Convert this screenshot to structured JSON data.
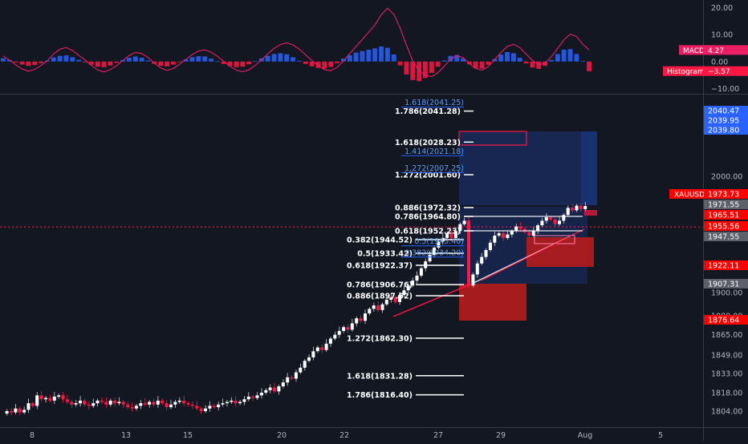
{
  "chart_data": [
    {
      "type": "bar",
      "title": "MACD",
      "indicator": {
        "name": "MACD",
        "value": "4.27",
        "color": "#e91e63"
      },
      "histogram_label": {
        "name": "Histogram",
        "value": "−3.57",
        "color": "#ff1744"
      },
      "yticks": [
        "20.00",
        "10.00",
        "0.00",
        "−10.00"
      ],
      "ylim": [
        -12,
        22
      ],
      "macd_line": [
        2.1,
        0.5,
        -1.2,
        -2.8,
        -3.6,
        -2.9,
        -1.5,
        0.3,
        2.8,
        4.6,
        5.2,
        4.1,
        2.3,
        0.6,
        -1.4,
        -3.1,
        -3.9,
        -3.0,
        -1.6,
        0.4,
        2.2,
        3.4,
        3.0,
        1.5,
        -0.6,
        -2.4,
        -3.3,
        -2.6,
        -1.0,
        0.8,
        2.6,
        3.9,
        4.3,
        3.5,
        1.9,
        0.1,
        -1.8,
        -3.2,
        -3.8,
        -3.1,
        -1.4,
        0.6,
        2.8,
        4.9,
        6.3,
        6.9,
        6.2,
        4.6,
        2.5,
        0.4,
        -1.6,
        -3.0,
        -3.4,
        -2.2,
        0.1,
        2.9,
        5.6,
        8.2,
        10.9,
        13.6,
        17.4,
        19.8,
        17.6,
        12.5,
        6.1,
        0.2,
        -3.4,
        -5.1,
        -5.6,
        -4.2,
        -1.8,
        0.9,
        2.2,
        1.4,
        -0.8,
        -2.6,
        -3.2,
        -1.9,
        0.7,
        3.4,
        5.6,
        6.4,
        5.2,
        2.8,
        0.4,
        -1.2,
        -0.6,
        1.8,
        4.9,
        8.1,
        10.2,
        9.3,
        6.4,
        4.27
      ],
      "histogram": [
        1.2,
        0.6,
        -0.4,
        -1.1,
        -1.6,
        -1.3,
        -0.6,
        0.4,
        1.5,
        2.1,
        2.3,
        1.6,
        0.6,
        -0.3,
        -1.2,
        -1.9,
        -2.1,
        -1.5,
        -0.5,
        0.6,
        1.4,
        1.9,
        1.4,
        0.4,
        -0.8,
        -1.6,
        -1.8,
        -1.1,
        -0.2,
        0.8,
        1.6,
        2.0,
        1.9,
        1.1,
        0.1,
        -0.9,
        -1.7,
        -2.1,
        -1.9,
        -1.0,
        0.2,
        1.2,
        2.1,
        2.8,
        3.1,
        2.7,
        1.6,
        0.3,
        -0.9,
        -1.8,
        -2.4,
        -2.6,
        -2.0,
        -0.6,
        1.1,
        2.4,
        3.3,
        3.9,
        4.4,
        4.9,
        5.6,
        5.1,
        2.6,
        -1.4,
        -4.8,
        -6.9,
        -7.3,
        -6.1,
        -4.2,
        -1.9,
        0.4,
        2.1,
        2.4,
        1.1,
        -1.0,
        -2.5,
        -2.6,
        -1.2,
        0.9,
        2.6,
        3.5,
        3.1,
        1.4,
        -0.7,
        -2.2,
        -2.7,
        -1.6,
        0.6,
        2.8,
        4.4,
        4.6,
        2.8,
        0.2,
        -3.57
      ]
    },
    {
      "type": "line",
      "title": "XAUUSD",
      "symbol": "XAUUSD",
      "ylim": [
        1793,
        2048
      ],
      "yticks": [
        "2000.00",
        "1900.00",
        "1880.00",
        "1865.00",
        "1849.00",
        "1833.00",
        "1818.00",
        "1804.00"
      ],
      "price_labels": [
        {
          "text": "2040.47",
          "value": 2040.47,
          "color": "#2962ff"
        },
        {
          "text": "2039.95",
          "value": 2039.95,
          "color": "#2962ff"
        },
        {
          "text": "2039.80",
          "value": 2039.8,
          "color": "#2962ff"
        },
        {
          "text": "1973.73",
          "value": 1973.73,
          "color": "#ff0000",
          "prefix": "XAUUSD"
        },
        {
          "text": "1971.55",
          "value": 1971.55,
          "color": "#5d606b"
        },
        {
          "text": "1965.51",
          "value": 1965.51,
          "color": "#ff0000"
        },
        {
          "text": "1955.56",
          "value": 1955.56,
          "color": "#ff0000"
        },
        {
          "text": "1947.55",
          "value": 1947.55,
          "color": "#5d606b"
        },
        {
          "text": "1922.11",
          "value": 1922.11,
          "color": "#ff0000"
        },
        {
          "text": "1907.31",
          "value": 1907.31,
          "color": "#5d606b"
        },
        {
          "text": "1876.64",
          "value": 1876.64,
          "color": "#ff0000"
        }
      ],
      "x_ticks": [
        "8",
        "13",
        "15",
        "20",
        "22",
        "27",
        "29",
        "Aug",
        "5"
      ],
      "fib_left": [
        {
          "text": "0.382(1944.52)",
          "value": 1944.52
        },
        {
          "text": "0.5(1933.42)",
          "value": 1933.42
        },
        {
          "text": "0.618(1922.37)",
          "value": 1922.37
        },
        {
          "text": "0.786(1906.76)",
          "value": 1906.76
        },
        {
          "text": "0.886(1897.52)",
          "value": 1897.52
        },
        {
          "text": "1.272(1862.30)",
          "value": 1862.3
        },
        {
          "text": "1.618(1831.28)",
          "value": 1831.28
        },
        {
          "text": "1.786(1816.40)",
          "value": 1816.4
        }
      ],
      "fib_mid": [
        {
          "text": "1.786(2041.28)",
          "value": 2041.28
        },
        {
          "text": "1.618(2028.23)",
          "value": 2028.23
        },
        {
          "text": "1.272(2001.60)",
          "value": 2001.6
        },
        {
          "text": "0.886(1972.32)",
          "value": 1972.32
        },
        {
          "text": "0.786(1964.80)",
          "value": 1964.8
        },
        {
          "text": "0.618(1952.23)",
          "value": 1952.23
        }
      ],
      "fib_blue": [
        {
          "text": "1.618(2041.25)",
          "value": 2041.25
        },
        {
          "text": "1.414(2021.18)",
          "value": 2021.18
        },
        {
          "text": "1.272(2007.25)",
          "value": 2007.25
        },
        {
          "text": "0.5(1943.40)",
          "value": 1943.4
        },
        {
          "text": "0.382(1934.20)",
          "value": 1934.2
        }
      ],
      "candles_close": [
        1804,
        1803,
        1806,
        1803,
        1805,
        1810,
        1808,
        1816,
        1813,
        1814,
        1812,
        1815,
        1816,
        1813,
        1811,
        1809,
        1810,
        1812,
        1809,
        1808,
        1810,
        1812,
        1811,
        1809,
        1812,
        1810,
        1811,
        1809,
        1807,
        1806,
        1808,
        1810,
        1809,
        1811,
        1809,
        1812,
        1810,
        1807,
        1809,
        1811,
        1812,
        1810,
        1809,
        1808,
        1806,
        1804,
        1806,
        1808,
        1807,
        1809,
        1810,
        1811,
        1812,
        1810,
        1811,
        1813,
        1815,
        1814,
        1816,
        1818,
        1820,
        1822,
        1819,
        1823,
        1826,
        1830,
        1829,
        1834,
        1838,
        1844,
        1847,
        1852,
        1855,
        1853,
        1858,
        1862,
        1865,
        1868,
        1871,
        1869,
        1874,
        1878,
        1876,
        1882,
        1886,
        1889,
        1885,
        1890,
        1894,
        1896,
        1892,
        1898,
        1902,
        1906,
        1910,
        1914,
        1920,
        1926,
        1932,
        1938,
        1943,
        1946,
        1950,
        1946,
        1952,
        1958,
        1961,
        1906,
        1915,
        1924,
        1930,
        1936,
        1942,
        1948,
        1950,
        1946,
        1949,
        1952,
        1956,
        1954,
        1951,
        1948,
        1952,
        1957,
        1961,
        1964,
        1962,
        1958,
        1961,
        1966,
        1972,
        1970,
        1974,
        1971,
        1973.73
      ]
    }
  ]
}
